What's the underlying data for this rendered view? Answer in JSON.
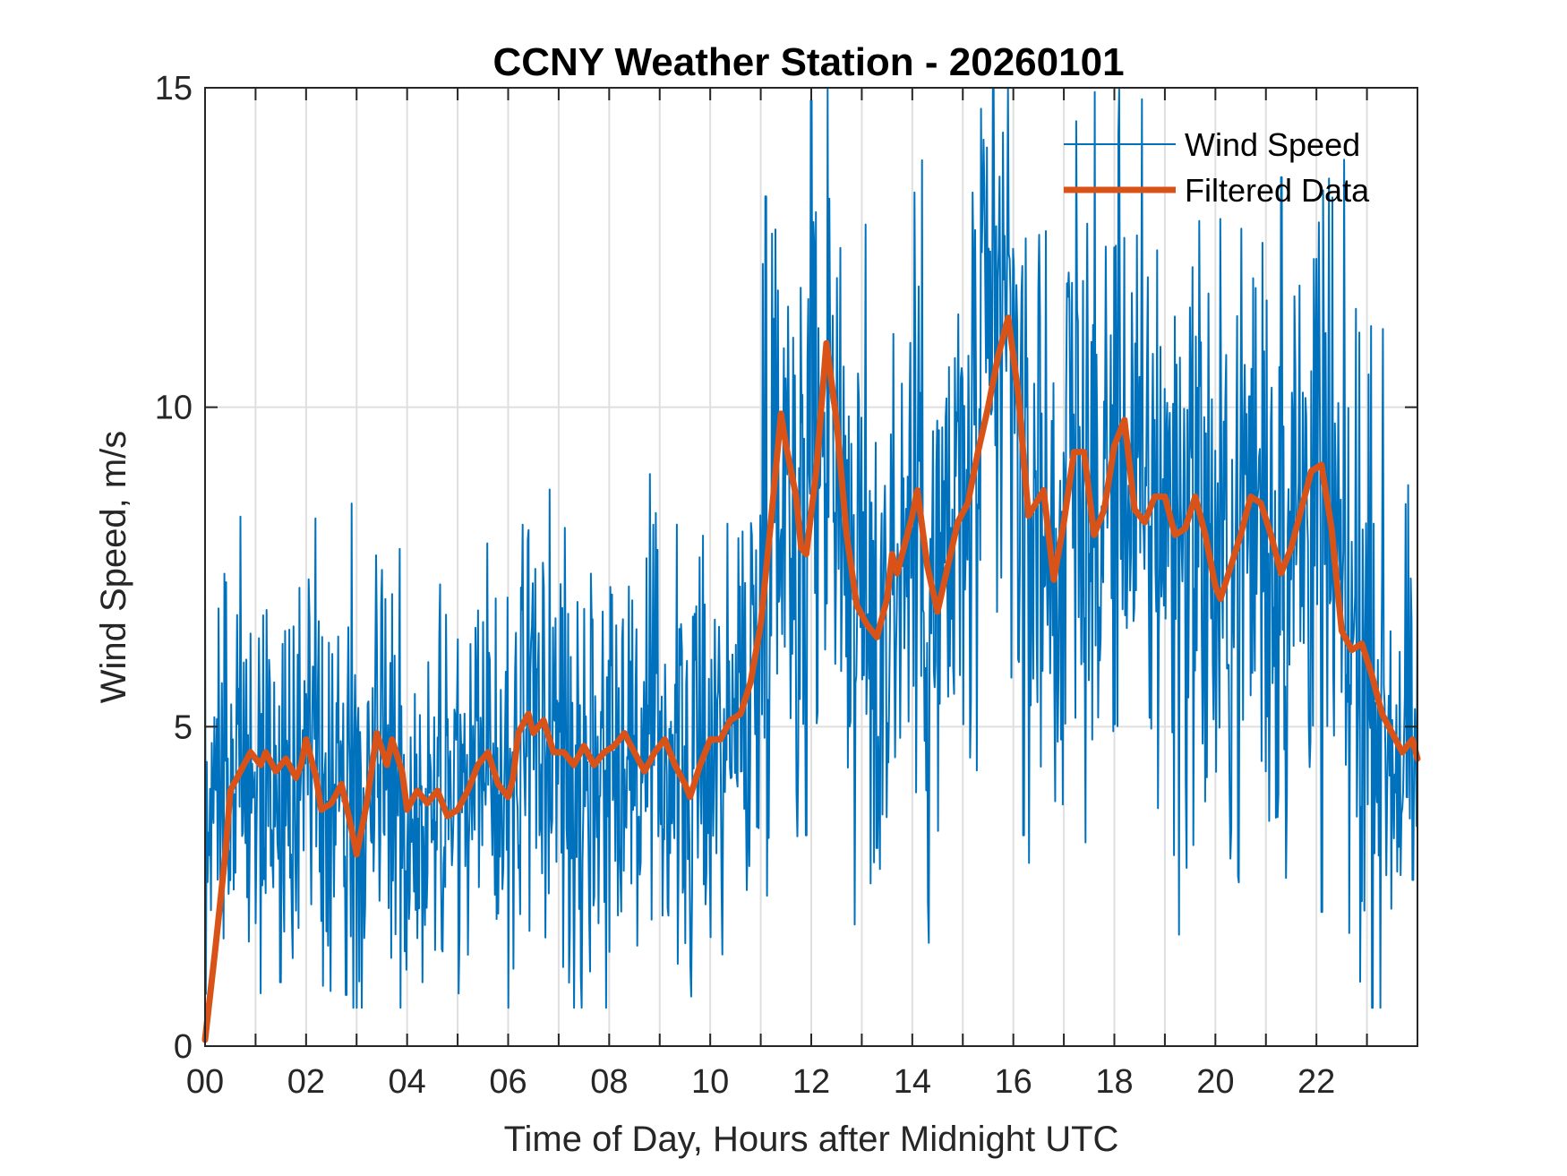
{
  "chart_data": {
    "type": "line",
    "title": "CCNY Weather Station - 20260101",
    "xlabel": "Time of Day, Hours after Midnight UTC",
    "ylabel": "Wind Speed, m/s",
    "xlim": [
      0,
      24
    ],
    "ylim": [
      0,
      15
    ],
    "x_ticks": [
      0,
      2,
      4,
      6,
      8,
      10,
      12,
      14,
      16,
      18,
      20,
      22
    ],
    "x_tick_labels": [
      "00",
      "02",
      "04",
      "06",
      "08",
      "10",
      "12",
      "14",
      "16",
      "18",
      "20",
      "22"
    ],
    "x_minor_step": 1,
    "y_ticks": [
      0,
      5,
      10,
      15
    ],
    "y_tick_labels": [
      "0",
      "5",
      "10",
      "15"
    ],
    "grid": true,
    "legend": {
      "placement": "top-right",
      "entries": [
        {
          "label": "Wind Speed",
          "color": "#0072bd"
        },
        {
          "label": "Filtered Data",
          "color": "#d95319"
        }
      ]
    },
    "series": [
      {
        "name": "Wind Speed",
        "color": "#0072bd",
        "kind": "raw",
        "description": "High-frequency noisy samples scattered around the filtered trend",
        "approx_range": [
          0.8,
          15.0
        ],
        "noise_amplitude_by_hour": [
          [
            0,
            1.7
          ],
          [
            10.8,
            1.7
          ],
          [
            11.0,
            2.6
          ],
          [
            23.0,
            2.6
          ],
          [
            24,
            1.4
          ]
        ],
        "notable_peaks": [
          [
            11.1,
            13.3
          ],
          [
            12.0,
            14.8
          ],
          [
            15.6,
            15.0
          ],
          [
            21.3,
            13.6
          ]
        ],
        "notable_lows": [
          [
            1.5,
            1.0
          ],
          [
            2.8,
            0.8
          ],
          [
            11.9,
            3.3
          ],
          [
            13.3,
            3.1
          ],
          [
            16.2,
            3.3
          ],
          [
            22.1,
            2.1
          ],
          [
            23.9,
            2.6
          ]
        ]
      },
      {
        "name": "Filtered Data",
        "color": "#d95319",
        "kind": "smoothed",
        "x": [
          0.0,
          0.2,
          0.4,
          0.5,
          0.7,
          0.9,
          1.1,
          1.2,
          1.4,
          1.6,
          1.8,
          1.9,
          2.0,
          2.2,
          2.3,
          2.5,
          2.7,
          2.9,
          3.0,
          3.2,
          3.4,
          3.6,
          3.7,
          3.9,
          4.0,
          4.2,
          4.4,
          4.6,
          4.8,
          5.0,
          5.2,
          5.4,
          5.6,
          5.8,
          6.0,
          6.1,
          6.2,
          6.4,
          6.5,
          6.7,
          6.9,
          7.1,
          7.3,
          7.5,
          7.7,
          7.9,
          8.1,
          8.3,
          8.5,
          8.7,
          8.9,
          9.1,
          9.3,
          9.5,
          9.6,
          9.8,
          10.0,
          10.2,
          10.4,
          10.6,
          10.8,
          11.0,
          11.2,
          11.4,
          11.5,
          11.7,
          11.8,
          11.9,
          12.1,
          12.3,
          12.5,
          12.7,
          12.9,
          13.1,
          13.3,
          13.5,
          13.6,
          13.7,
          13.9,
          14.0,
          14.1,
          14.3,
          14.5,
          14.7,
          14.9,
          15.1,
          15.3,
          15.5,
          15.7,
          15.9,
          16.1,
          16.3,
          16.6,
          16.8,
          17.0,
          17.2,
          17.4,
          17.6,
          17.8,
          18.0,
          18.2,
          18.4,
          18.6,
          18.8,
          19.0,
          19.2,
          19.4,
          19.6,
          19.8,
          20.0,
          20.1,
          20.3,
          20.5,
          20.7,
          20.9,
          21.1,
          21.3,
          21.5,
          21.7,
          21.9,
          22.1,
          22.3,
          22.5,
          22.7,
          22.9,
          23.1,
          23.3,
          23.5,
          23.7,
          23.9,
          24.0
        ],
        "y": [
          0.1,
          1.5,
          3.0,
          4.0,
          4.3,
          4.6,
          4.4,
          4.6,
          4.3,
          4.5,
          4.2,
          4.4,
          4.8,
          4.2,
          3.7,
          3.8,
          4.1,
          3.4,
          3.0,
          3.8,
          4.9,
          4.4,
          4.8,
          4.3,
          3.7,
          4.0,
          3.8,
          4.0,
          3.6,
          3.7,
          4.0,
          4.4,
          4.6,
          4.1,
          3.9,
          4.2,
          4.9,
          5.2,
          4.9,
          5.1,
          4.6,
          4.6,
          4.4,
          4.7,
          4.4,
          4.6,
          4.7,
          4.9,
          4.6,
          4.3,
          4.6,
          4.8,
          4.4,
          4.1,
          3.9,
          4.4,
          4.8,
          4.8,
          5.1,
          5.2,
          5.7,
          6.6,
          8.2,
          9.9,
          9.4,
          8.6,
          7.8,
          7.7,
          9.0,
          11.0,
          9.8,
          8.0,
          6.9,
          6.6,
          6.4,
          7.0,
          7.7,
          7.4,
          8.0,
          8.3,
          8.7,
          7.5,
          6.8,
          7.5,
          8.2,
          8.5,
          9.3,
          10.0,
          10.8,
          11.4,
          10.2,
          8.3,
          8.7,
          7.3,
          8.2,
          9.3,
          9.3,
          8.0,
          8.4,
          9.4,
          9.8,
          8.4,
          8.2,
          8.6,
          8.6,
          8.0,
          8.1,
          8.6,
          8.0,
          7.2,
          7.0,
          7.5,
          8.0,
          8.6,
          8.5,
          8.0,
          7.4,
          7.8,
          8.4,
          9.0,
          9.1,
          8.1,
          6.5,
          6.2,
          6.3,
          5.8,
          5.2,
          4.9,
          4.6,
          4.8,
          4.5
        ]
      }
    ]
  }
}
